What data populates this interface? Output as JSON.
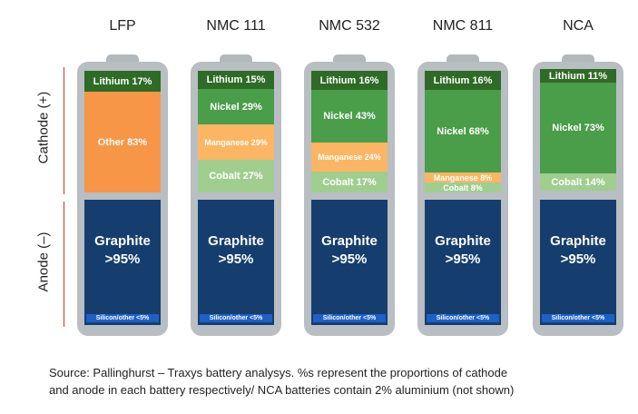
{
  "axis": {
    "cathode": "Cathode (+)",
    "anode": "Anode (–)"
  },
  "batteries": [
    {
      "name": "LFP",
      "cathode": [
        {
          "label": "Lithium 17%",
          "pct": 17,
          "color": "#2e6b26"
        },
        {
          "label": "Other 83%",
          "pct": 83,
          "color": "#f79646"
        }
      ],
      "anode": {
        "line1": "Graphite",
        "line2": ">95%",
        "silicon": "Silicon/other <5%"
      }
    },
    {
      "name": "NMC 111",
      "cathode": [
        {
          "label": "Lithium 15%",
          "pct": 15,
          "color": "#2e6b26"
        },
        {
          "label": "Nickel 29%",
          "pct": 29,
          "color": "#4a9d49"
        },
        {
          "label": "Manganese 29%",
          "pct": 29,
          "color": "#fbb563"
        },
        {
          "label": "Cobalt 27%",
          "pct": 27,
          "color": "#9fce8f"
        }
      ],
      "anode": {
        "line1": "Graphite",
        "line2": ">95%",
        "silicon": "Silicon/other <5%"
      }
    },
    {
      "name": "NMC 532",
      "cathode": [
        {
          "label": "Lithium 16%",
          "pct": 16,
          "color": "#2e6b26"
        },
        {
          "label": "Nickel 43%",
          "pct": 43,
          "color": "#4a9d49"
        },
        {
          "label": "Manganese 24%",
          "pct": 24,
          "color": "#fbb563"
        },
        {
          "label": "Cobalt 17%",
          "pct": 17,
          "color": "#9fce8f"
        }
      ],
      "anode": {
        "line1": "Graphite",
        "line2": ">95%",
        "silicon": "Silicon/other <5%"
      }
    },
    {
      "name": "NMC 811",
      "cathode": [
        {
          "label": "Lithium 16%",
          "pct": 16,
          "color": "#2e6b26"
        },
        {
          "label": "Nickel 68%",
          "pct": 68,
          "color": "#4a9d49"
        },
        {
          "label": "Manganese 8%",
          "pct": 8,
          "color": "#fbb563"
        },
        {
          "label": "Cobalt 8%",
          "pct": 8,
          "color": "#9fce8f"
        }
      ],
      "anode": {
        "line1": "Graphite",
        "line2": ">95%",
        "silicon": "Silicon/other <5%"
      }
    },
    {
      "name": "NCA",
      "cathode": [
        {
          "label": "Lithium 11%",
          "pct": 11,
          "color": "#2e6b26"
        },
        {
          "label": "Nickel 73%",
          "pct": 73,
          "color": "#4a9d49"
        },
        {
          "label": "Cobalt 14%",
          "pct": 14,
          "color": "#9fce8f"
        }
      ],
      "anode": {
        "line1": "Graphite",
        "line2": ">95%",
        "silicon": "Silicon/other <5%"
      }
    }
  ],
  "source": {
    "line1": "Source: Pallinghurst – Traxys battery analysys. %s represent the proportions of cathode",
    "line2": "and anode in each battery respectively/ NCA batteries contain 2% aluminium (not shown)"
  }
}
